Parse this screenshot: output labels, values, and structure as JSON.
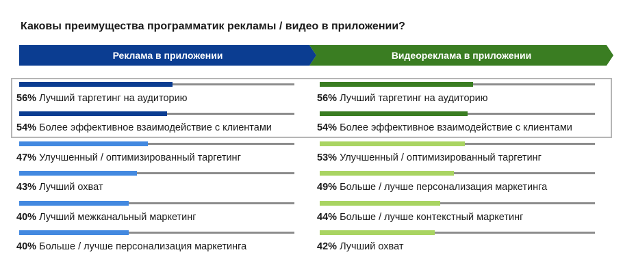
{
  "title": "Каковы преимущества программатик рекламы / видео в приложении?",
  "colors": {
    "left_banner": "#0b3d91",
    "right_banner": "#3a7d22",
    "left_top": "#0b3d91",
    "left_rest": "#4389e0",
    "right_top": "#3a7d22",
    "right_rest": "#a9d462",
    "track": "#8c8c8c"
  },
  "chart_data": [
    {
      "type": "bar",
      "title": "Реклама в приложении",
      "unit": "%",
      "highlighted_top": 2,
      "items": [
        {
          "value": 56,
          "pct": "56%",
          "label": "Лучший таргетинг на аудиторию"
        },
        {
          "value": 54,
          "pct": "54%",
          "label": "Более эффективное взаимодействие с клиентами"
        },
        {
          "value": 47,
          "pct": "47%",
          "label": "Улучшенный / оптимизированный таргетинг"
        },
        {
          "value": 43,
          "pct": "43%",
          "label": "Лучший охват"
        },
        {
          "value": 40,
          "pct": "40%",
          "label": "Лучший межканальный маркетинг"
        },
        {
          "value": 40,
          "pct": "40%",
          "label": "Больше / лучше персонализация маркетинга"
        }
      ]
    },
    {
      "type": "bar",
      "title": "Видеореклама в приложении",
      "unit": "%",
      "highlighted_top": 2,
      "items": [
        {
          "value": 56,
          "pct": "56%",
          "label": "Лучший таргетинг на аудиторию"
        },
        {
          "value": 54,
          "pct": "54%",
          "label": "Более эффективное взаимодействие с клиентами"
        },
        {
          "value": 53,
          "pct": "53%",
          "label": "Улучшенный / оптимизированный таргетинг"
        },
        {
          "value": 49,
          "pct": "49%",
          "label": "Больше / лучше персонализация маркетинга"
        },
        {
          "value": 44,
          "pct": "44%",
          "label": "Больше / лучше контекстный маркетинг"
        },
        {
          "value": 42,
          "pct": "42%",
          "label": "Лучший охват"
        }
      ]
    }
  ]
}
